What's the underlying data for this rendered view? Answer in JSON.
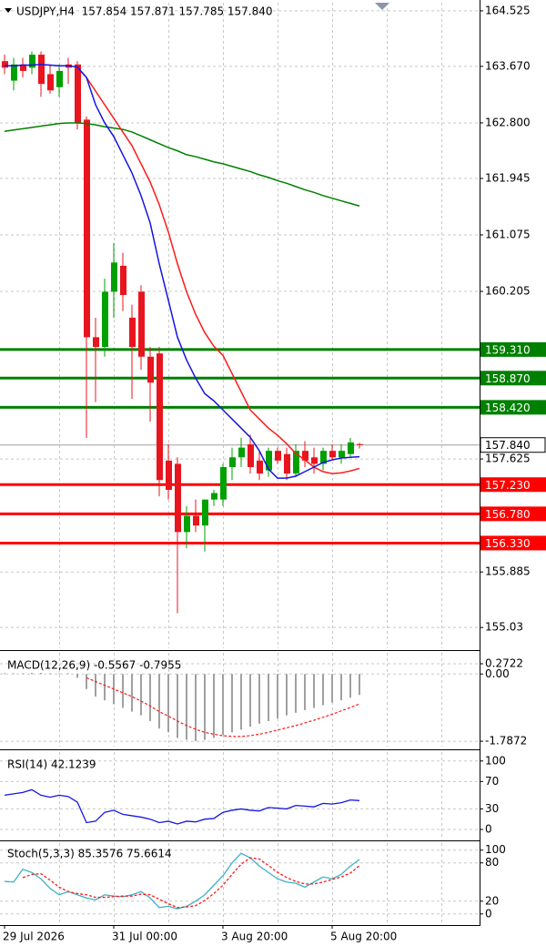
{
  "chart_data": [
    {
      "type": "candlestick",
      "title": "USDJPY,H4  157.854 157.871 157.785 157.840",
      "categories": [
        "29 Jul 2026",
        null,
        null,
        null,
        null,
        null,
        null,
        null,
        null,
        null,
        null,
        null,
        "31 Jul 00:00",
        null,
        null,
        null,
        null,
        null,
        null,
        null,
        null,
        null,
        null,
        null,
        "3 Aug 20:00",
        null,
        null,
        null,
        null,
        null,
        null,
        null,
        null,
        null,
        null,
        null,
        "5 Aug 20:00",
        null,
        null,
        null
      ],
      "open": [
        163.75,
        163.45,
        163.7,
        163.65,
        163.85,
        163.55,
        163.35,
        163.7,
        163.7,
        162.85,
        159.5,
        159.35,
        160.2,
        160.6,
        159.8,
        160.2,
        159.2,
        159.25,
        157.6,
        157.55,
        156.5,
        156.75,
        156.6,
        157.0,
        157.0,
        157.5,
        157.65,
        157.85,
        157.6,
        157.45,
        157.75,
        157.7,
        157.4,
        157.75,
        157.65,
        157.55,
        157.75,
        157.65,
        157.7,
        157.854
      ],
      "high": [
        163.85,
        163.8,
        163.8,
        163.9,
        163.9,
        163.7,
        163.7,
        163.8,
        163.75,
        162.9,
        159.8,
        160.4,
        160.95,
        160.8,
        160.0,
        160.3,
        159.35,
        159.35,
        157.85,
        157.65,
        156.9,
        157.0,
        157.0,
        157.15,
        157.55,
        157.8,
        157.95,
        158.0,
        157.75,
        157.8,
        157.8,
        157.8,
        157.85,
        157.9,
        157.8,
        157.8,
        157.85,
        157.85,
        157.95,
        157.871
      ],
      "low": [
        163.55,
        163.3,
        163.5,
        163.55,
        163.2,
        163.25,
        163.2,
        163.4,
        162.7,
        157.95,
        158.5,
        159.2,
        159.8,
        159.9,
        158.55,
        159.0,
        158.2,
        157.05,
        157.0,
        155.25,
        156.25,
        156.5,
        156.2,
        156.9,
        156.9,
        157.3,
        157.5,
        157.4,
        157.3,
        157.35,
        157.55,
        157.3,
        157.35,
        157.5,
        157.4,
        157.45,
        157.6,
        157.55,
        157.65,
        157.785
      ],
      "close": [
        163.65,
        163.7,
        163.6,
        163.85,
        163.4,
        163.3,
        163.6,
        163.65,
        162.8,
        159.5,
        159.35,
        160.2,
        160.65,
        160.15,
        159.35,
        159.2,
        158.8,
        157.3,
        157.15,
        156.5,
        156.75,
        156.6,
        157.0,
        157.1,
        157.5,
        157.65,
        157.8,
        157.5,
        157.4,
        157.75,
        157.6,
        157.4,
        157.75,
        157.6,
        157.55,
        157.75,
        157.65,
        157.75,
        157.88,
        157.84
      ],
      "up_color": "#00a000",
      "down_color": "#e8141e",
      "series": [
        {
          "color": "#008000",
          "values": [
            162.67,
            162.69,
            162.71,
            162.73,
            162.75,
            162.77,
            162.79,
            162.8,
            162.8,
            162.79,
            162.77,
            162.74,
            162.72,
            162.7,
            162.66,
            162.6,
            162.54,
            162.48,
            162.42,
            162.37,
            162.31,
            162.28,
            162.24,
            162.2,
            162.17,
            162.13,
            162.09,
            162.05,
            162.0,
            161.96,
            161.91,
            161.87,
            161.82,
            161.77,
            161.73,
            161.68,
            161.64,
            161.6,
            161.56,
            161.52
          ]
        },
        {
          "color": "#ff1a1a",
          "values": [
            null,
            null,
            null,
            null,
            null,
            null,
            null,
            null,
            163.65,
            163.5,
            163.29,
            163.08,
            162.87,
            162.66,
            162.45,
            162.17,
            161.89,
            161.54,
            161.12,
            160.63,
            160.2,
            159.85,
            159.57,
            159.36,
            159.22,
            158.94,
            158.66,
            158.38,
            158.24,
            158.1,
            157.99,
            157.86,
            157.71,
            157.61,
            157.5,
            157.43,
            157.4,
            157.41,
            157.44,
            157.48
          ]
        },
        {
          "color": "#1515e0",
          "values": [
            163.68,
            163.68,
            163.69,
            163.69,
            163.7,
            163.69,
            163.68,
            163.68,
            163.66,
            163.5,
            163.08,
            162.8,
            162.59,
            162.31,
            162.03,
            161.68,
            161.26,
            160.63,
            160.07,
            159.5,
            159.15,
            158.87,
            158.63,
            158.52,
            158.38,
            158.24,
            158.1,
            157.96,
            157.75,
            157.47,
            157.33,
            157.33,
            157.36,
            157.43,
            157.5,
            157.57,
            157.61,
            157.64,
            157.65,
            157.66
          ]
        }
      ],
      "levels": [
        {
          "value": 159.31,
          "label": "159.310",
          "color": "#008000"
        },
        {
          "value": 158.87,
          "label": "158.870",
          "color": "#008000"
        },
        {
          "value": 158.42,
          "label": "158.420",
          "color": "#008000"
        },
        {
          "value": 157.23,
          "label": "157.230",
          "color": "#ff0000"
        },
        {
          "value": 156.78,
          "label": "156.780",
          "color": "#ff0000"
        },
        {
          "value": 156.33,
          "label": "156.330",
          "color": "#ff0000"
        }
      ],
      "last_price": {
        "value": 157.84,
        "label": "157.840"
      },
      "ylim": [
        154.71,
        164.65
      ],
      "yticks": [
        164.525,
        {
          "value": 163.67,
          "label": "163.670"
        },
        {
          "value": 162.8,
          "label": "162.800"
        },
        161.945,
        161.075,
        160.205,
        157.625,
        155.885,
        155.03
      ],
      "grid": true
    },
    {
      "type": "macd",
      "title": "MACD(12,26,9) -0.5567 -0.7955",
      "series": [
        {
          "color": "#a0a0a0",
          "values": [
            0.02,
            0.02,
            0.02,
            0.03,
            0.03,
            0.02,
            0.02,
            0.02,
            -0.1,
            -0.4,
            -0.6,
            -0.7,
            -0.8,
            -0.9,
            -1.0,
            -1.1,
            -1.25,
            -1.45,
            -1.55,
            -1.7,
            -1.75,
            -1.78,
            -1.75,
            -1.7,
            -1.62,
            -1.55,
            -1.48,
            -1.4,
            -1.32,
            -1.25,
            -1.18,
            -1.1,
            -1.03,
            -0.96,
            -0.9,
            -0.83,
            -0.76,
            -0.7,
            -0.63,
            -0.5567
          ]
        },
        {
          "color": "#ff1a1a",
          "values": [
            null,
            null,
            null,
            null,
            null,
            null,
            null,
            null,
            null,
            -0.1,
            -0.2,
            -0.3,
            -0.4,
            -0.5,
            -0.6,
            -0.72,
            -0.85,
            -1.0,
            -1.12,
            -1.25,
            -1.37,
            -1.47,
            -1.55,
            -1.6,
            -1.64,
            -1.66,
            -1.66,
            -1.64,
            -1.6,
            -1.55,
            -1.49,
            -1.43,
            -1.37,
            -1.3,
            -1.23,
            -1.15,
            -1.07,
            -0.98,
            -0.89,
            -0.7955
          ]
        }
      ],
      "ylim": [
        -1.93,
        0.563
      ],
      "yticks": [
        0.2722,
        {
          "value": 0,
          "label": "0.00"
        },
        -1.7872
      ]
    },
    {
      "type": "line",
      "title": "RSI(14) 42.1239",
      "series": [
        {
          "color": "#1515e0",
          "values": [
            50,
            52,
            54,
            58,
            50,
            47,
            50,
            48,
            40,
            10,
            12,
            25,
            28,
            22,
            20,
            18,
            15,
            10,
            12,
            8,
            12,
            11,
            15,
            16,
            25,
            28,
            30,
            28,
            27,
            32,
            31,
            30,
            35,
            34,
            33,
            38,
            37,
            39,
            43,
            42.1239
          ]
        }
      ],
      "ylim": [
        -12,
        113
      ],
      "yticks": [
        100,
        70,
        30,
        0
      ]
    },
    {
      "type": "line",
      "title": "Stoch(5,3,3) 85.3576 75.6614",
      "series": [
        {
          "color": "#3cb3c3",
          "values": [
            51,
            50,
            70,
            65,
            55,
            40,
            30,
            35,
            30,
            25,
            22,
            30,
            28,
            27,
            30,
            35,
            25,
            10,
            12,
            8,
            12,
            20,
            30,
            45,
            60,
            80,
            95,
            88,
            75,
            65,
            55,
            50,
            48,
            42,
            50,
            58,
            55,
            62,
            75,
            85.3576
          ]
        },
        {
          "color": "#ff1a1a",
          "dashed": true,
          "values": [
            null,
            null,
            57,
            62,
            63,
            53,
            42,
            35,
            32,
            30,
            26,
            26,
            27,
            28,
            28,
            31,
            30,
            23,
            16,
            10,
            11,
            13,
            21,
            32,
            45,
            62,
            78,
            88,
            86,
            76,
            65,
            57,
            51,
            47,
            47,
            50,
            54,
            58,
            64,
            75.6614
          ]
        }
      ],
      "ylim": [
        -16,
        111
      ],
      "yticks": [
        100,
        80,
        20,
        0
      ]
    }
  ]
}
